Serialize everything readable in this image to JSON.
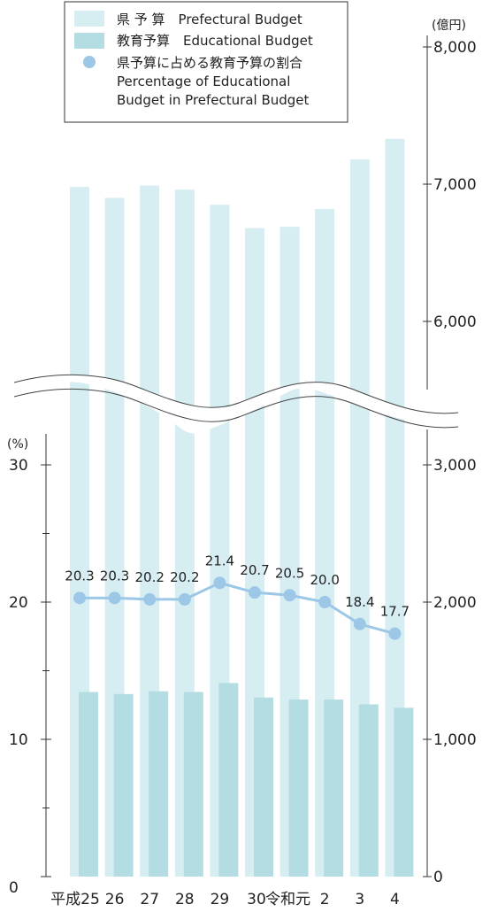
{
  "chart_data": {
    "type": "bar",
    "categories": [
      "平成25",
      "26",
      "27",
      "28",
      "29",
      "30",
      "令和元",
      "2",
      "3",
      "4"
    ],
    "series": [
      {
        "name": "県 予 算　Prefectural Budget",
        "type": "bar",
        "axis": "right",
        "values": [
          6980,
          6900,
          6990,
          6960,
          6850,
          6680,
          6690,
          6820,
          7180,
          7330
        ]
      },
      {
        "name": "教育予算　Educational Budget",
        "type": "bar",
        "axis": "right",
        "values": [
          1345,
          1330,
          1350,
          1345,
          1410,
          1305,
          1290,
          1290,
          1255,
          1230
        ]
      },
      {
        "name": "県予算に占める教育予算の割合 Percentage of Educational Budget in Prefectural Budget",
        "type": "line",
        "axis": "left",
        "values": [
          20.3,
          20.3,
          20.2,
          20.2,
          21.4,
          20.7,
          20.5,
          20.0,
          18.4,
          17.7
        ]
      }
    ],
    "legend": {
      "position": "top-left",
      "items": [
        {
          "key": "prefectural",
          "lines": [
            "県 予 算　Prefectural Budget"
          ]
        },
        {
          "key": "educational",
          "lines": [
            "教育予算　Educational Budget"
          ]
        },
        {
          "key": "percentage",
          "lines": [
            "県予算に占める教育予算の割合",
            "Percentage of Educational",
            "Budget in Prefectural Budget"
          ]
        }
      ]
    },
    "right_axis": {
      "unit": "(億円)",
      "lower_ticks": [
        0,
        1000,
        2000,
        3000
      ],
      "lower_tick_labels": [
        "0",
        "1,000",
        "2,000",
        "3,000"
      ],
      "upper_ticks": [
        6000,
        7000,
        8000
      ],
      "upper_tick_labels": [
        "6,000",
        "7,000",
        "8,000"
      ],
      "axis_break": "between 3,000 and 6,000"
    },
    "left_axis": {
      "unit": "(%)",
      "ticks": [
        0,
        10,
        20,
        30
      ],
      "tick_labels": [
        "0",
        "10",
        "20",
        "30"
      ],
      "minor_ticks": [
        5,
        15,
        25
      ],
      "ylim": [
        0,
        30
      ]
    },
    "colors": {
      "prefectural": "#d6edf1",
      "educational": "#b3dde3",
      "line": "#9cc7e6",
      "axis": "#333333"
    }
  }
}
